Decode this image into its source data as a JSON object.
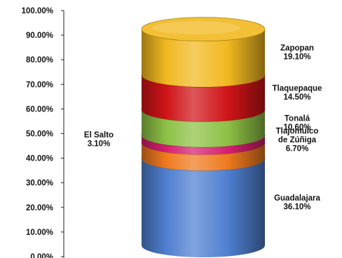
{
  "chart_data": {
    "type": "bar",
    "subtype": "stacked-3d-cylinder",
    "title": "",
    "xlabel": "",
    "ylabel": "",
    "ylim": [
      0,
      100
    ],
    "y_ticks": [
      "0.00%",
      "10.00%",
      "20.00%",
      "30.00%",
      "40.00%",
      "50.00%",
      "60.00%",
      "70.00%",
      "80.00%",
      "90.00%",
      "100.00%"
    ],
    "grid": false,
    "legend": "none",
    "segments": [
      {
        "name": "Guadalajara",
        "label_lines": [
          "Guadalajara",
          "36.10%"
        ],
        "value": 36.1,
        "color": "#4f7fd0",
        "side": "right"
      },
      {
        "name": "Tlajomulco de Zúñiga",
        "label_lines": [
          "Tlajomulco",
          "de Zúñiga",
          "6.70%"
        ],
        "value": 6.7,
        "color": "#ef7a1e",
        "side": "right"
      },
      {
        "name": "El Salto",
        "label_lines": [
          "El Salto",
          "3.10%"
        ],
        "value": 3.1,
        "color": "#d51f6f",
        "side": "left"
      },
      {
        "name": "Tonalá",
        "label_lines": [
          "Tonalá",
          "10.60%"
        ],
        "value": 10.6,
        "color": "#8dc145",
        "side": "right"
      },
      {
        "name": "Tlaquepaque",
        "label_lines": [
          "Tlaquepaque",
          "14.50%"
        ],
        "value": 14.5,
        "color": "#cf1418",
        "side": "right"
      },
      {
        "name": "Zapopan",
        "label_lines": [
          "Zapopan",
          "19.10%"
        ],
        "value": 19.1,
        "color": "#f1b81f",
        "side": "right"
      }
    ]
  }
}
